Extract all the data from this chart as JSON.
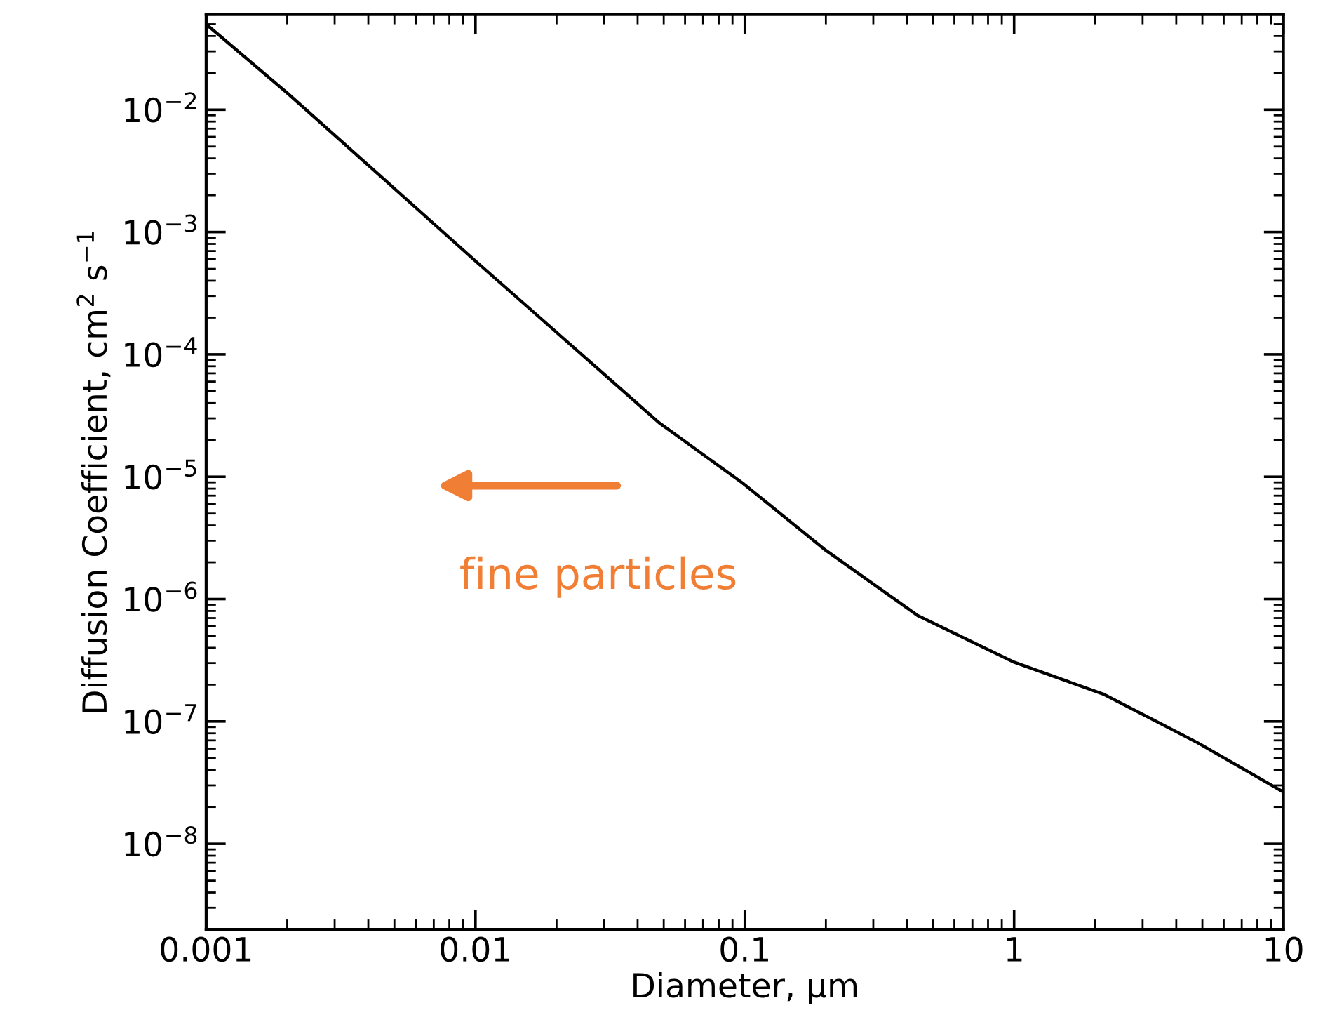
{
  "chart_data": {
    "type": "line",
    "xlabel": "Diameter, μm",
    "ylabel": "Diffusion Coefficient, cm$^{2}$ s$^{−1}$",
    "log": "xy",
    "xlim": [
      0.001,
      10
    ],
    "ylim": [
      2e-09,
      0.06
    ],
    "xticks": [
      0.001,
      0.01,
      0.1,
      1,
      10
    ],
    "yticks": [
      {
        "value": 1e-08,
        "label": "10$^{−8}$"
      },
      {
        "value": 1e-07,
        "label": "10$^{−7}$"
      },
      {
        "value": 1e-06,
        "label": "10$^{−6}$"
      },
      {
        "value": 1e-05,
        "label": "10$^{−5}$"
      },
      {
        "value": 0.0001,
        "label": "10$^{−4}$"
      },
      {
        "value": 0.001,
        "label": "10$^{−3}$"
      },
      {
        "value": 0.01,
        "label": "10$^{−2}$"
      }
    ],
    "grid": false,
    "legend": false,
    "marker": "none",
    "line_style": "solid",
    "series": [
      {
        "color": "#000000",
        "x": [
          0.001,
          0.002,
          0.005,
          0.01,
          0.03,
          0.048,
          0.098,
          0.2,
          0.44,
          1,
          2.16,
          4.8,
          10
        ],
        "values": [
          0.05,
          0.0137,
          0.00227,
          0.00058,
          6.9e-05,
          2.77e-05,
          8.9e-06,
          2.5e-06,
          7.3e-07,
          3.05e-07,
          1.66e-07,
          6.7e-08,
          2.65e-08
        ]
      }
    ],
    "annotations": [
      "fine particles"
    ]
  }
}
